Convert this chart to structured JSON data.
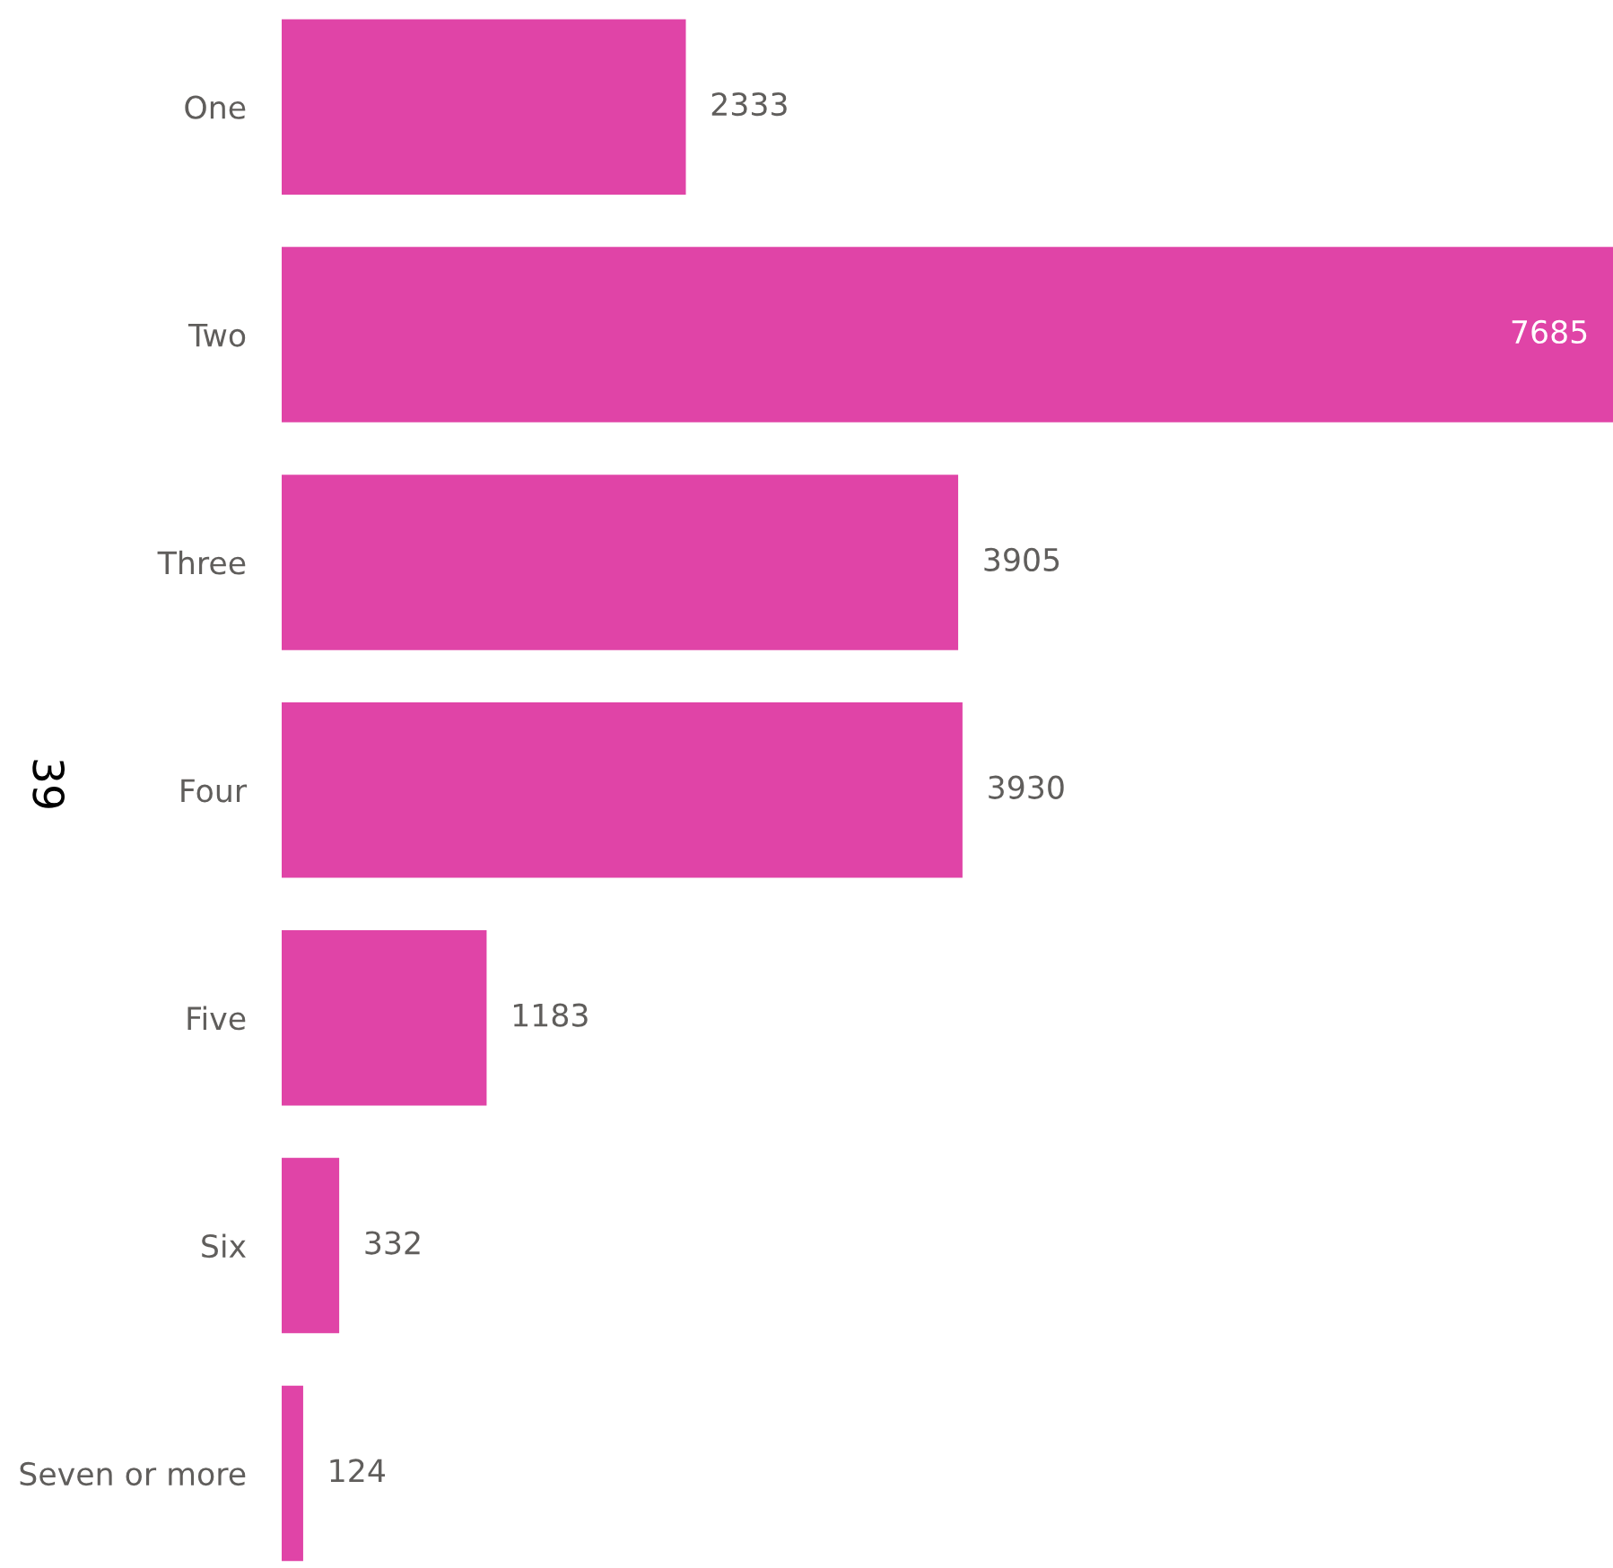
{
  "chart_data": {
    "type": "bar",
    "orientation": "horizontal",
    "ylabel": "39",
    "categories": [
      "One",
      "Two",
      "Three",
      "Four",
      "Five",
      "Six",
      "Seven or more"
    ],
    "values": [
      2333,
      7685,
      3905,
      3930,
      1183,
      332,
      124
    ],
    "color": "#e044a7",
    "data_labels": true,
    "grid": false,
    "legend": false
  }
}
